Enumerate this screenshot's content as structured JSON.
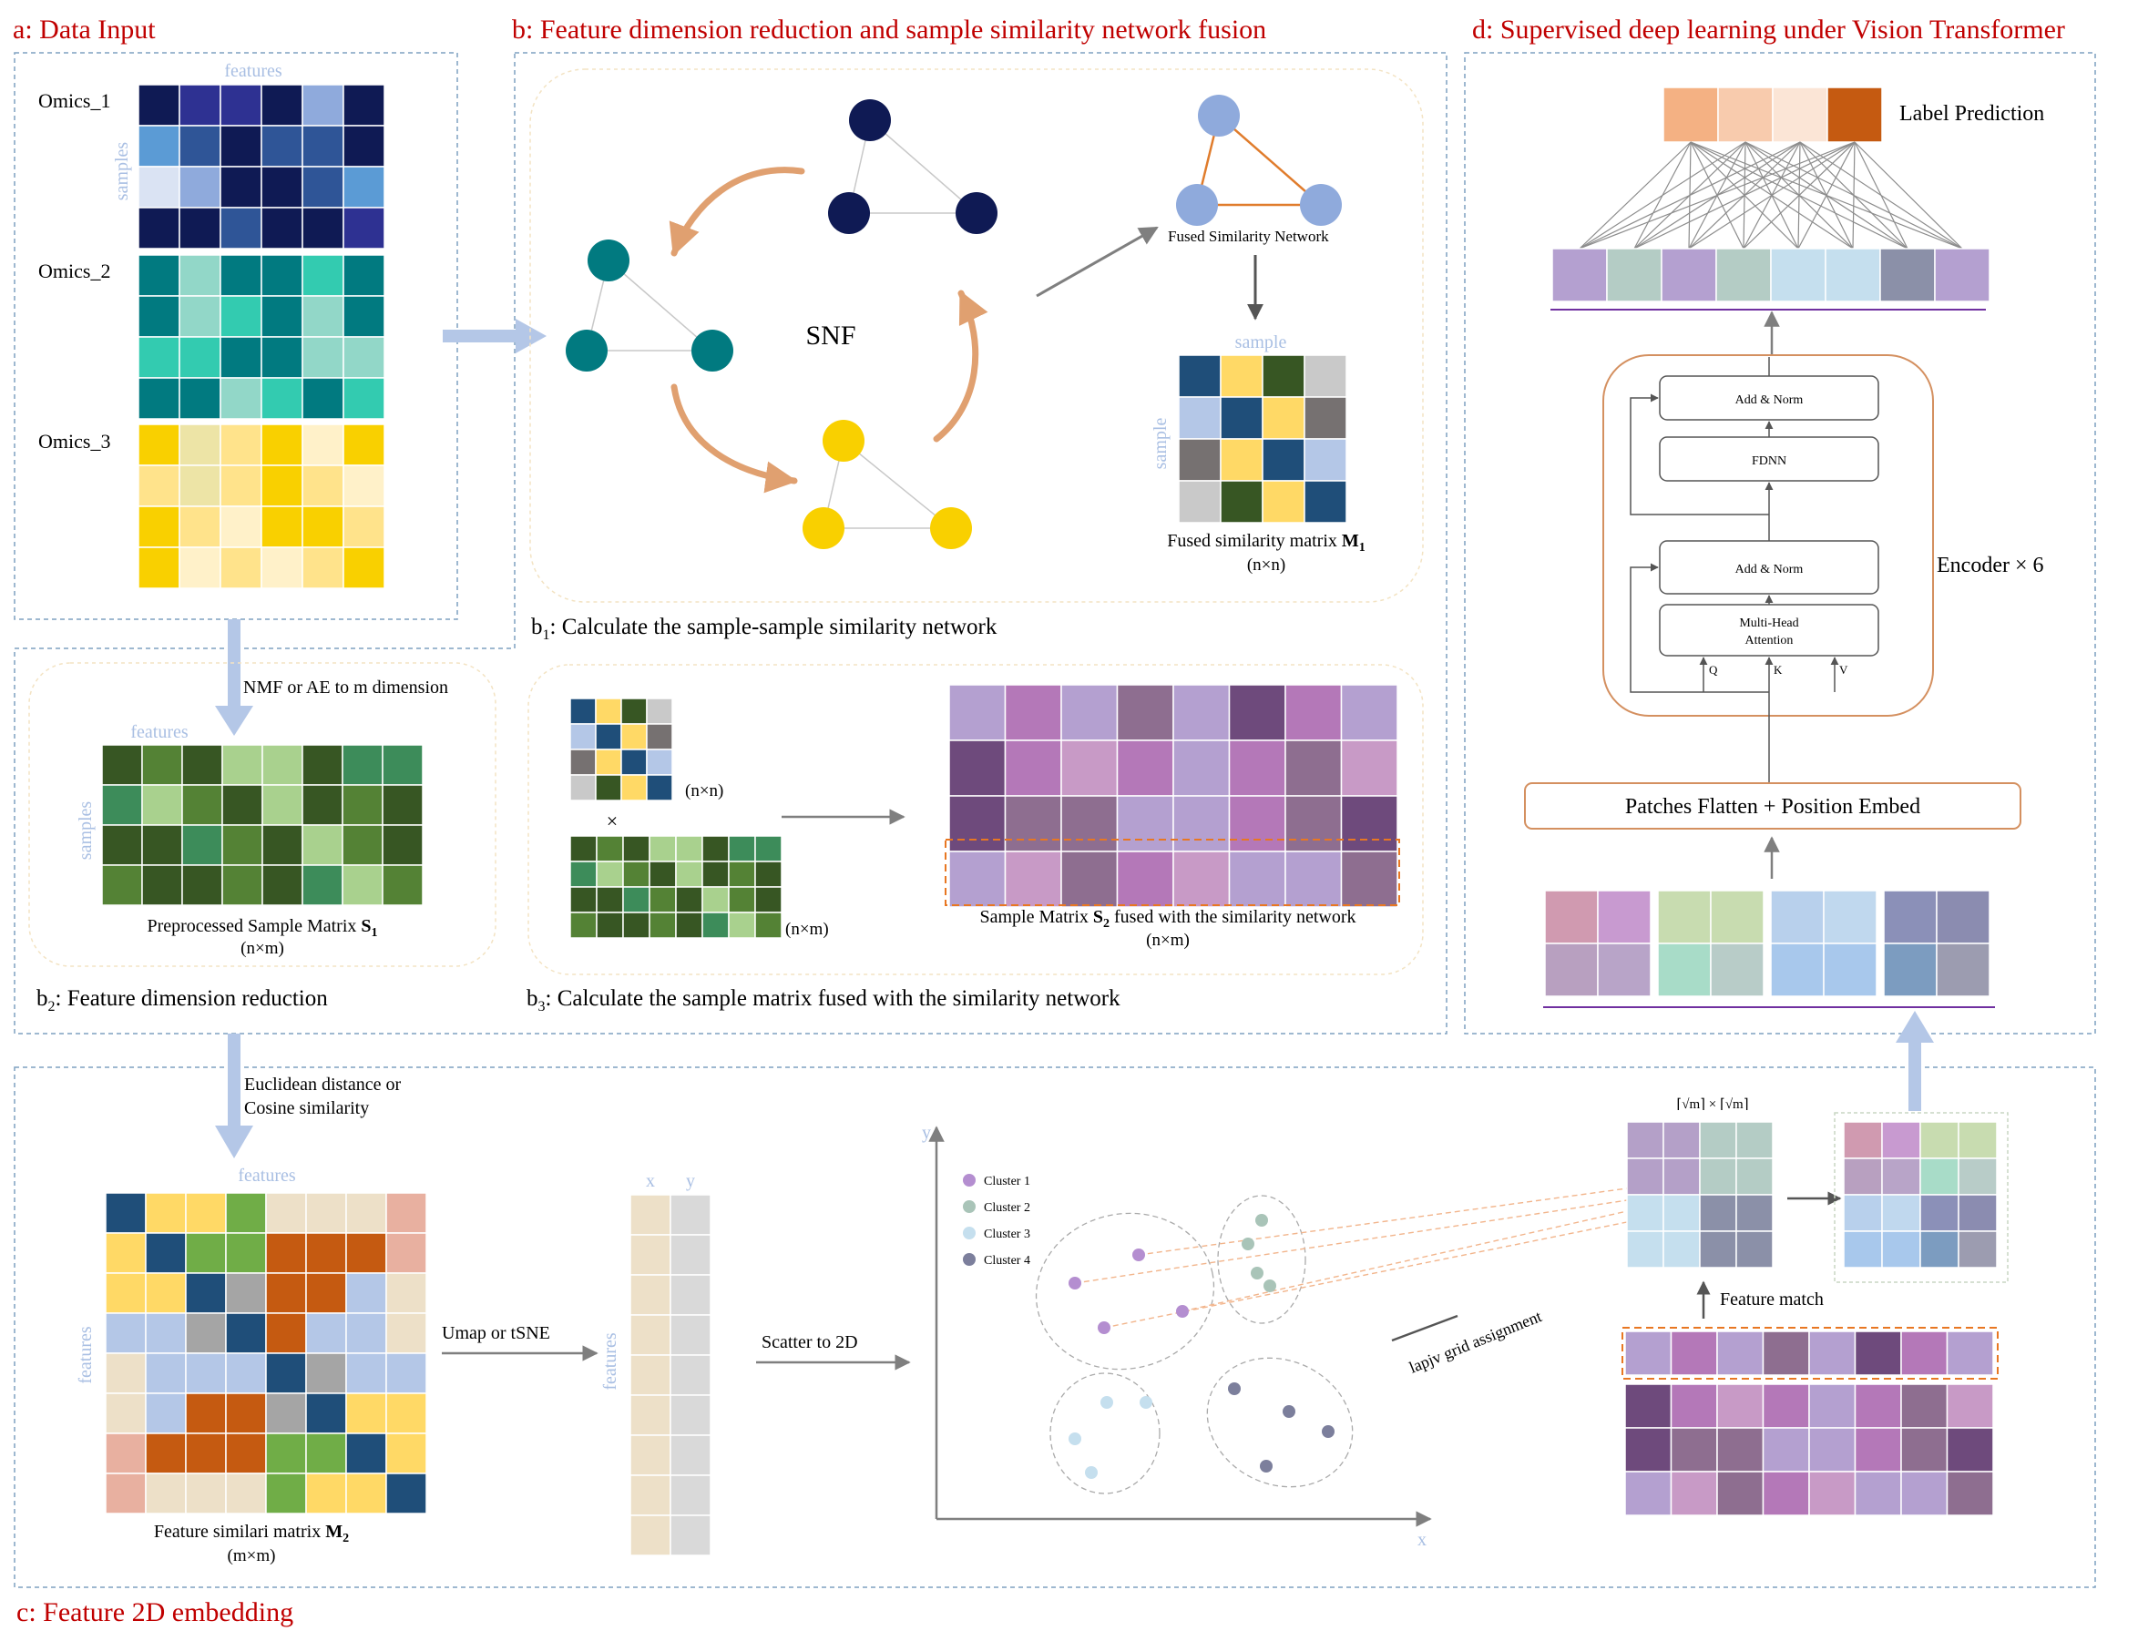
{
  "panels": {
    "a": {
      "title": "a: Data Input",
      "features_label": "features",
      "samples_label": "samples",
      "omics": [
        "Omics_1",
        "Omics_2",
        "Omics_3"
      ]
    },
    "b": {
      "title": "b: Feature dimension reduction and sample similarity network fusion",
      "snf_label": "SNF",
      "fused_network_label": "Fused Similarity  Network",
      "sample_label": "sample",
      "fused_matrix_label": "Fused similarity  matrix",
      "fused_matrix_symbol": "M",
      "fused_matrix_sub": "1",
      "fused_matrix_dims": "(n×n)",
      "b1_prefix": "b",
      "b1_sub": "1",
      "b1_text": ": Calculate the sample-sample similarity network",
      "reduction_label": "NMF or AE to m dimension",
      "features_label": "features",
      "samples_label": "samples",
      "s1_label": "Preprocessed Sample Matrix",
      "s1_symbol": "S",
      "s1_sub": "1",
      "s1_dims": "(n×m)",
      "b2_prefix": "b",
      "b2_sub": "2",
      "b2_text": ": Feature dimension reduction",
      "nn_label": "(n×n)",
      "times_label": "×",
      "nm_label": "(n×m)",
      "s2_label_pre": "Sample Matrix",
      "s2_symbol": "S",
      "s2_sub": "2",
      "s2_label_post": "fused with the similarity network",
      "s2_dims": "(n×m)",
      "b3_prefix": "b",
      "b3_sub": "3",
      "b3_text": ": Calculate the sample matrix fused with the similarity network"
    },
    "c": {
      "title": "c: Feature 2D embedding",
      "distance_label_1": "Euclidean distance or",
      "distance_label_2": "Cosine similarity",
      "features_label": "features",
      "features_side_label": "features",
      "m2_label": "Feature similari matrix",
      "m2_symbol": "M",
      "m2_sub": "2",
      "m2_dims": "(m×m)",
      "umap_label": "Umap or tSNE",
      "x_col": "x",
      "y_col": "y",
      "xy_features_label": "features",
      "scatter_label": "Scatter to 2D",
      "y_axis": "y",
      "x_axis": "x",
      "clusters": [
        "Cluster  1",
        "Cluster  2",
        "Cluster  3",
        "Cluster  4"
      ],
      "lapjv_label": "lapjv grid assignment",
      "grid_size_label": "⌈√m⌉ × ⌈√m⌉",
      "feature_match_label": "Feature match"
    },
    "d": {
      "title": "d: Supervised deep learning under Vision Transformer",
      "label_prediction": "Label Prediction",
      "add_norm_top": "Add & Norm",
      "fdnn": "FDNN",
      "add_norm_bottom": "Add & Norm",
      "mha_1": "Multi-Head",
      "mha_2": "Attention",
      "q": "Q",
      "k": "K",
      "v": "V",
      "encoder_label": "Encoder × 6",
      "patches_label": "Patches Flatten + Position Embed"
    }
  },
  "colors": {
    "title_red": "#c00000",
    "dashed_border": "#7fa0c0",
    "arrow_blue": "#b4c7e7",
    "light_label": "#a9bfe3",
    "orange_dash": "#e87722",
    "encoder_border": "#d49060"
  }
}
